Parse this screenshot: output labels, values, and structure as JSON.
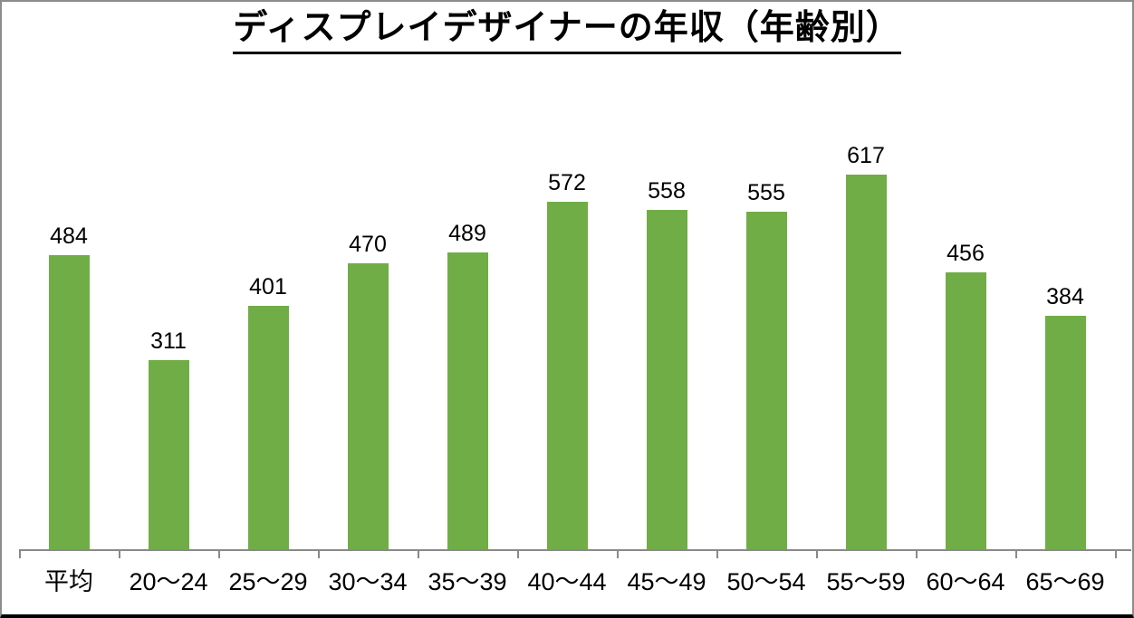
{
  "chart_data": {
    "type": "bar",
    "title": "ディスプレイデザイナーの年収（年齢別）",
    "categories": [
      "平均",
      "20〜24",
      "25〜29",
      "30〜34",
      "35〜39",
      "40〜44",
      "45〜49",
      "50〜54",
      "55〜59",
      "60〜64",
      "65〜69"
    ],
    "values": [
      484,
      311,
      401,
      470,
      489,
      572,
      558,
      555,
      617,
      456,
      384
    ],
    "value_labels_shown": true,
    "xlabel": "",
    "ylabel": "",
    "ylim": [
      0,
      700
    ],
    "grid": false,
    "legend": false,
    "bar_color": "#70ad47",
    "text_color": "#000000",
    "axis_color": "#898989",
    "frame_border_color": "#8c8c8c",
    "frame_bottom_color": "#000000",
    "background_color": "#ffffff"
  }
}
